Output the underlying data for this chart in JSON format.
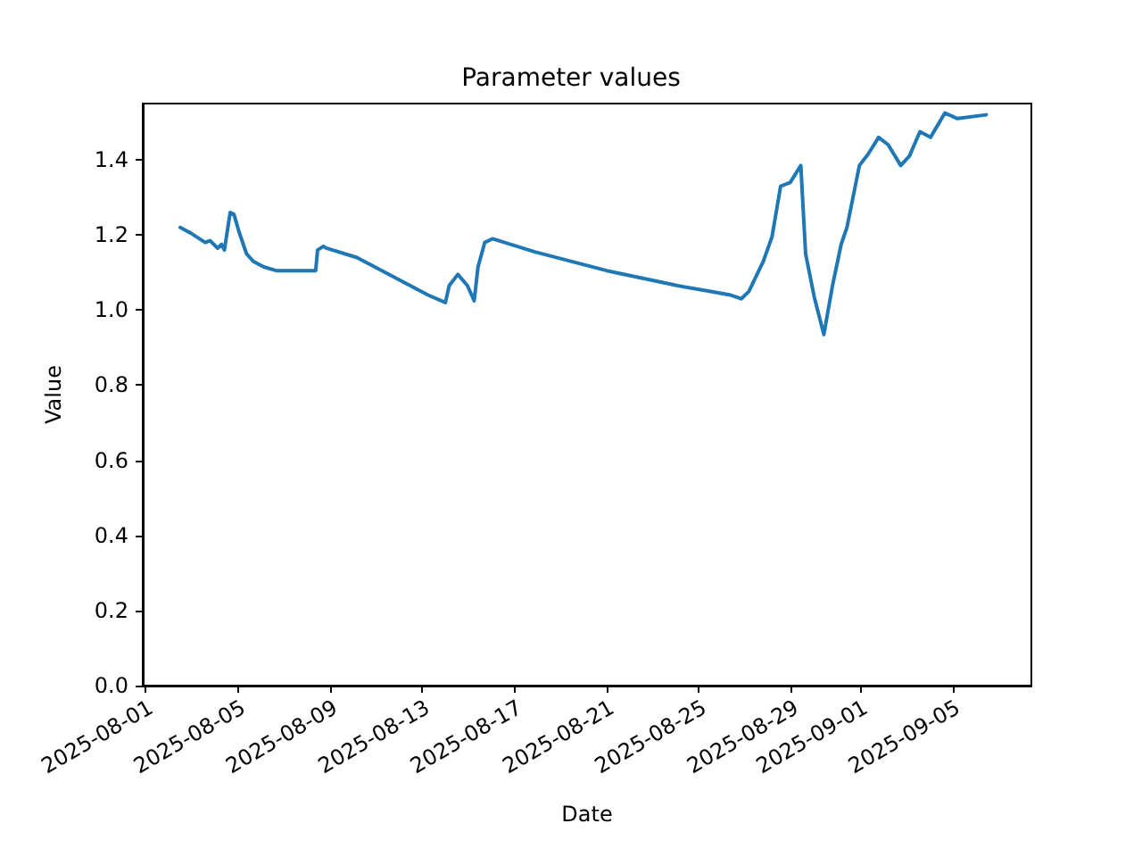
{
  "chart_data": {
    "type": "line",
    "title": "Parameter values",
    "xlabel": "Date",
    "ylabel": "Value",
    "grid": false,
    "marker": "none",
    "line_style": "solid",
    "xlim": [
      "2025-07-31T21:00",
      "2025-09-08T10:00"
    ],
    "xticks": [
      "2025-08-01",
      "2025-08-05",
      "2025-08-09",
      "2025-08-13",
      "2025-08-17",
      "2025-08-21",
      "2025-08-25",
      "2025-08-29",
      "2025-09-01",
      "2025-09-05"
    ],
    "ylim": [
      0,
      1.55
    ],
    "yticks": [
      {
        "value": 0,
        "label": "0.0"
      },
      {
        "value": 0.2,
        "label": "0.2"
      },
      {
        "value": 0.4,
        "label": "0.4"
      },
      {
        "value": 0.6,
        "label": "0.6"
      },
      {
        "value": 0.8,
        "label": "0.8"
      },
      {
        "value": 1,
        "label": "1.0"
      },
      {
        "value": 1.2,
        "label": "1.2"
      },
      {
        "value": 1.4,
        "label": "1.4"
      }
    ],
    "series": [
      {
        "color": "#1f77b4",
        "x": [
          "2025-08-02T12:00",
          "2025-08-02T23:00",
          "2025-08-03T14:00",
          "2025-08-03T19:00",
          "2025-08-04T03:00",
          "2025-08-04T07:00",
          "2025-08-04T10:00",
          "2025-08-04T16:00",
          "2025-08-04T20:00",
          "2025-08-05T01:00",
          "2025-08-05T09:00",
          "2025-08-05T16:00",
          "2025-08-06T03:00",
          "2025-08-06T16:00",
          "2025-08-07T11:00",
          "2025-08-08T07:00",
          "2025-08-08T09:00",
          "2025-08-08T11:00",
          "2025-08-08T17:00",
          "2025-08-08T20:00",
          "2025-08-10T04:00",
          "2025-08-11T17:00",
          "2025-08-13T06:00",
          "2025-08-14T00:00",
          "2025-08-14T04:00",
          "2025-08-14T13:00",
          "2025-08-14T23:00",
          "2025-08-15T06:00",
          "2025-08-15T10:00",
          "2025-08-15T17:00",
          "2025-08-16T01:00",
          "2025-08-17T21:00",
          "2025-08-21T00:00",
          "2025-08-24T02:00",
          "2025-08-25T11:00",
          "2025-08-26T09:00",
          "2025-08-26T20:00",
          "2025-08-27T04:00",
          "2025-08-27T19:00",
          "2025-08-28T04:00",
          "2025-08-28T13:00",
          "2025-08-28T23:00",
          "2025-08-29T10:00",
          "2025-08-29T15:00",
          "2025-08-30T00:00",
          "2025-08-30T10:00",
          "2025-08-30T19:00",
          "2025-08-31T04:00",
          "2025-08-31T10:00",
          "2025-08-31T23:00",
          "2025-09-01T08:00",
          "2025-09-01T19:00",
          "2025-09-02T05:00",
          "2025-09-02T18:00",
          "2025-09-03T03:00",
          "2025-09-03T14:00",
          "2025-09-04T01:00",
          "2025-09-04T16:00",
          "2025-09-05T05:00",
          "2025-09-06T11:00"
        ],
        "values": [
          1.22,
          1.205,
          1.18,
          1.185,
          1.165,
          1.175,
          1.16,
          1.26,
          1.255,
          1.21,
          1.15,
          1.13,
          1.115,
          1.105,
          1.105,
          1.105,
          1.105,
          1.16,
          1.17,
          1.165,
          1.14,
          1.09,
          1.04,
          1.02,
          1.065,
          1.095,
          1.065,
          1.025,
          1.115,
          1.18,
          1.19,
          1.155,
          1.105,
          1.065,
          1.05,
          1.04,
          1.03,
          1.05,
          1.13,
          1.195,
          1.33,
          1.34,
          1.385,
          1.15,
          1.035,
          0.935,
          1.065,
          1.175,
          1.22,
          1.385,
          1.415,
          1.46,
          1.44,
          1.385,
          1.41,
          1.475,
          1.46,
          1.525,
          1.51,
          1.52
        ]
      }
    ]
  }
}
